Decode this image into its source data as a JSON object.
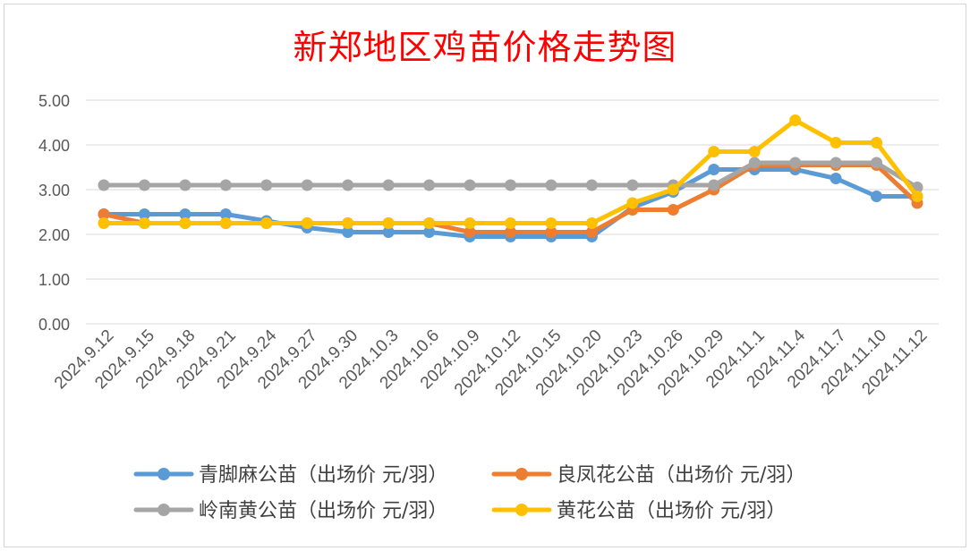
{
  "chart_data": {
    "type": "line",
    "title": "新郑地区鸡苗价格走势图",
    "xlabel": "",
    "ylabel": "",
    "ylim": [
      0,
      5
    ],
    "yticks": [
      "0.00",
      "1.00",
      "2.00",
      "3.00",
      "4.00",
      "5.00"
    ],
    "grid": true,
    "legend_position": "bottom",
    "categories": [
      "2024.9.12",
      "2024.9.15",
      "2024.9.18",
      "2024.9.21",
      "2024.9.24",
      "2024.9.27",
      "2024.9.30",
      "2024.10.3",
      "2024.10.6",
      "2024.10.9",
      "2024.10.12",
      "2024.10.15",
      "2024.10.20",
      "2024.10.23",
      "2024.10.26",
      "2024.10.29",
      "2024.11.1",
      "2024.11.4",
      "2024.11.7",
      "2024.11.10",
      "2024.11.12"
    ],
    "series": [
      {
        "name": "青脚麻公苗（出场价 元/羽）",
        "color": "#5b9bd5",
        "values": [
          2.45,
          2.45,
          2.45,
          2.45,
          2.3,
          2.15,
          2.05,
          2.05,
          2.05,
          1.95,
          1.95,
          1.95,
          1.95,
          2.6,
          2.95,
          3.45,
          3.45,
          3.45,
          3.25,
          2.85,
          2.85
        ]
      },
      {
        "name": "良凤花公苗（出场价 元/羽）",
        "color": "#ed7d31",
        "values": [
          2.45,
          2.25,
          2.25,
          2.25,
          2.25,
          2.25,
          2.25,
          2.25,
          2.25,
          2.05,
          2.05,
          2.05,
          2.05,
          2.55,
          2.55,
          3.0,
          3.55,
          3.55,
          3.55,
          3.55,
          2.7
        ]
      },
      {
        "name": "岭南黄公苗（出场价 元/羽）",
        "color": "#a5a5a5",
        "values": [
          3.1,
          3.1,
          3.1,
          3.1,
          3.1,
          3.1,
          3.1,
          3.1,
          3.1,
          3.1,
          3.1,
          3.1,
          3.1,
          3.1,
          3.1,
          3.1,
          3.6,
          3.6,
          3.6,
          3.6,
          3.05
        ]
      },
      {
        "name": "黄花公苗（出场价 元/羽）",
        "color": "#ffc000",
        "values": [
          2.25,
          2.25,
          2.25,
          2.25,
          2.25,
          2.25,
          2.25,
          2.25,
          2.25,
          2.25,
          2.25,
          2.25,
          2.25,
          2.7,
          3.0,
          3.85,
          3.85,
          4.55,
          4.05,
          4.05,
          2.85
        ]
      }
    ]
  }
}
